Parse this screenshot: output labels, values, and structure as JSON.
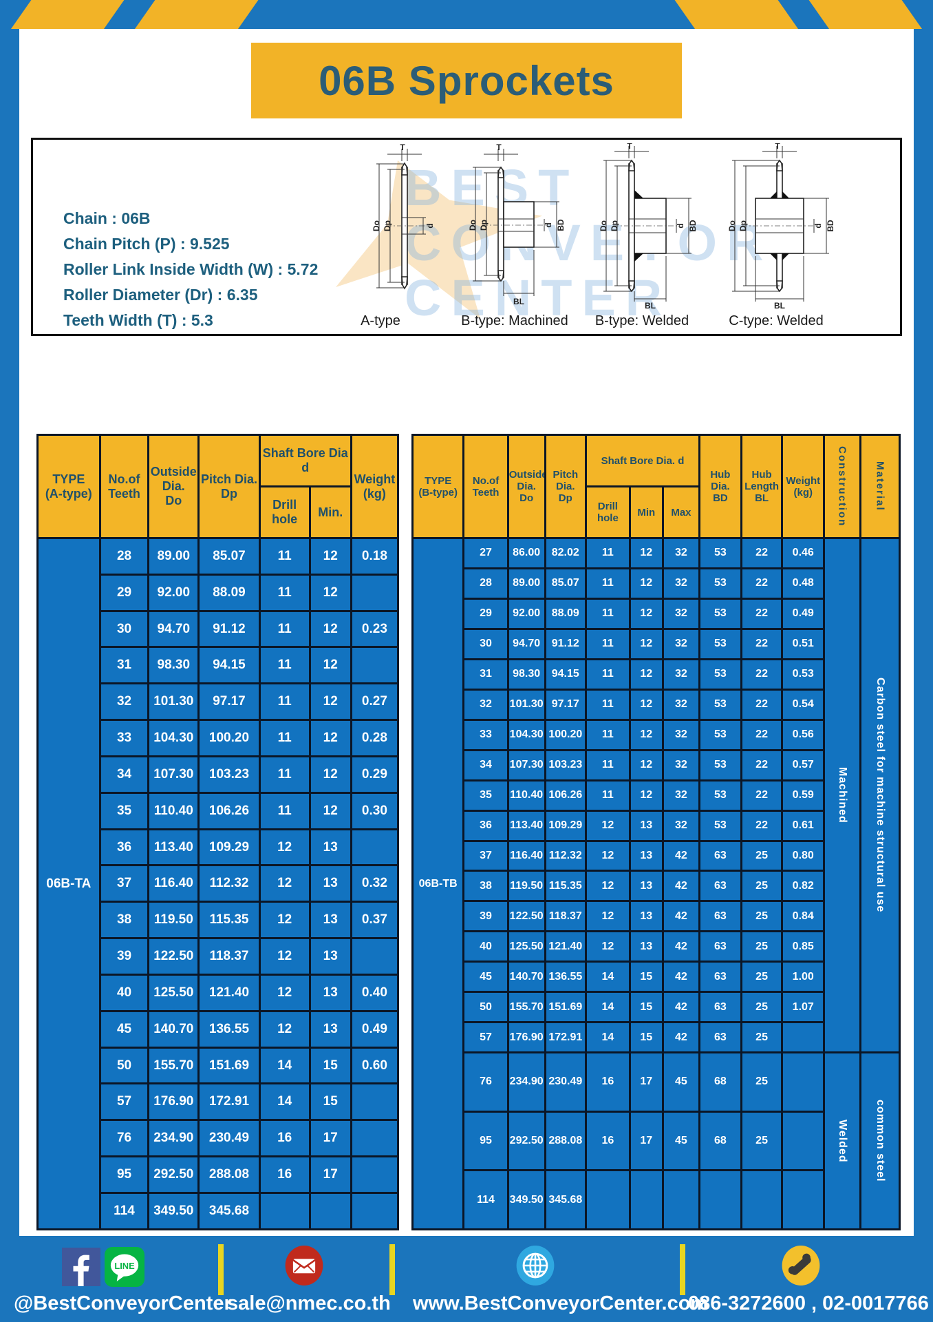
{
  "page": {
    "title": "06B Sprockets"
  },
  "colors": {
    "page_blue": "#1b75bc",
    "cell_blue": "#1273c0",
    "accent_yellow": "#f2b327",
    "title_teal": "#2b5d77",
    "grid_dark": "#0b1626"
  },
  "specs": {
    "lines": "Chain  : 06B\nChain Pitch (P)  :  9.525\nRoller Link Inside Width (W)  :  5.72\nRoller Diameter (Dr)  : 6.35\nTeeth Width (T)  :  5.3"
  },
  "diagram": {
    "captions": [
      "A-type",
      "B-type: Machined",
      "B-type: Welded",
      "C-type: Welded"
    ],
    "dims": {
      "t": "T",
      "do": "Do",
      "dp": "Dp",
      "d": "d",
      "bd": "BD",
      "bl": "BL"
    },
    "watermark": "BEST CONVEYOR CENTER"
  },
  "table_a": {
    "type_label": "06B-TA",
    "headers": {
      "type": "TYPE\n(A-type)",
      "teeth": "No.of\nTeeth",
      "outside": "Outside\nDia.\nDo",
      "pitch": "Pitch Dia.\nDp",
      "shaft": "Shaft Bore Dia d",
      "drill": "Drill hole",
      "min": "Min.",
      "weight": "Weight\n(kg)"
    },
    "rows": [
      [
        "28",
        "89.00",
        "85.07",
        "11",
        "12",
        "0.18"
      ],
      [
        "29",
        "92.00",
        "88.09",
        "11",
        "12",
        ""
      ],
      [
        "30",
        "94.70",
        "91.12",
        "11",
        "12",
        "0.23"
      ],
      [
        "31",
        "98.30",
        "94.15",
        "11",
        "12",
        ""
      ],
      [
        "32",
        "101.30",
        "97.17",
        "11",
        "12",
        "0.27"
      ],
      [
        "33",
        "104.30",
        "100.20",
        "11",
        "12",
        "0.28"
      ],
      [
        "34",
        "107.30",
        "103.23",
        "11",
        "12",
        "0.29"
      ],
      [
        "35",
        "110.40",
        "106.26",
        "11",
        "12",
        "0.30"
      ],
      [
        "36",
        "113.40",
        "109.29",
        "12",
        "13",
        ""
      ],
      [
        "37",
        "116.40",
        "112.32",
        "12",
        "13",
        "0.32"
      ],
      [
        "38",
        "119.50",
        "115.35",
        "12",
        "13",
        "0.37"
      ],
      [
        "39",
        "122.50",
        "118.37",
        "12",
        "13",
        ""
      ],
      [
        "40",
        "125.50",
        "121.40",
        "12",
        "13",
        "0.40"
      ],
      [
        "45",
        "140.70",
        "136.55",
        "12",
        "13",
        "0.49"
      ],
      [
        "50",
        "155.70",
        "151.69",
        "14",
        "15",
        "0.60"
      ],
      [
        "57",
        "176.90",
        "172.91",
        "14",
        "15",
        ""
      ],
      [
        "76",
        "234.90",
        "230.49",
        "16",
        "17",
        ""
      ],
      [
        "95",
        "292.50",
        "288.08",
        "16",
        "17",
        ""
      ],
      [
        "114",
        "349.50",
        "345.68",
        "",
        "",
        ""
      ]
    ]
  },
  "table_b": {
    "type_label": "06B-TB",
    "headers": {
      "type": "TYPE\n(B-type)",
      "teeth": "No.of\nTeeth",
      "outside": "Outside\nDia.\nDo",
      "pitch": "Pitch\nDia.\nDp",
      "shaft": "Shaft Bore Dia. d",
      "drill": "Drill hole",
      "min": "Min",
      "max": "Max",
      "hub_dia": "Hub\nDia.\nBD",
      "hub_len": "Hub\nLength\nBL",
      "weight": "Weight\n(kg)",
      "construction": "Construction",
      "material": "Material"
    },
    "rows": [
      [
        "27",
        "86.00",
        "82.02",
        "11",
        "12",
        "32",
        "53",
        "22",
        "0.46"
      ],
      [
        "28",
        "89.00",
        "85.07",
        "11",
        "12",
        "32",
        "53",
        "22",
        "0.48"
      ],
      [
        "29",
        "92.00",
        "88.09",
        "11",
        "12",
        "32",
        "53",
        "22",
        "0.49"
      ],
      [
        "30",
        "94.70",
        "91.12",
        "11",
        "12",
        "32",
        "53",
        "22",
        "0.51"
      ],
      [
        "31",
        "98.30",
        "94.15",
        "11",
        "12",
        "32",
        "53",
        "22",
        "0.53"
      ],
      [
        "32",
        "101.30",
        "97.17",
        "11",
        "12",
        "32",
        "53",
        "22",
        "0.54"
      ],
      [
        "33",
        "104.30",
        "100.20",
        "11",
        "12",
        "32",
        "53",
        "22",
        "0.56"
      ],
      [
        "34",
        "107.30",
        "103.23",
        "11",
        "12",
        "32",
        "53",
        "22",
        "0.57"
      ],
      [
        "35",
        "110.40",
        "106.26",
        "11",
        "12",
        "32",
        "53",
        "22",
        "0.59"
      ],
      [
        "36",
        "113.40",
        "109.29",
        "12",
        "13",
        "32",
        "53",
        "22",
        "0.61"
      ],
      [
        "37",
        "116.40",
        "112.32",
        "12",
        "13",
        "42",
        "63",
        "25",
        "0.80"
      ],
      [
        "38",
        "119.50",
        "115.35",
        "12",
        "13",
        "42",
        "63",
        "25",
        "0.82"
      ],
      [
        "39",
        "122.50",
        "118.37",
        "12",
        "13",
        "42",
        "63",
        "25",
        "0.84"
      ],
      [
        "40",
        "125.50",
        "121.40",
        "12",
        "13",
        "42",
        "63",
        "25",
        "0.85"
      ],
      [
        "45",
        "140.70",
        "136.55",
        "14",
        "15",
        "42",
        "63",
        "25",
        "1.00"
      ],
      [
        "50",
        "155.70",
        "151.69",
        "14",
        "15",
        "42",
        "63",
        "25",
        "1.07"
      ],
      [
        "57",
        "176.90",
        "172.91",
        "14",
        "15",
        "42",
        "63",
        "25",
        ""
      ],
      [
        "76",
        "234.90",
        "230.49",
        "16",
        "17",
        "45",
        "68",
        "25",
        ""
      ],
      [
        "95",
        "292.50",
        "288.08",
        "16",
        "17",
        "45",
        "68",
        "25",
        ""
      ],
      [
        "114",
        "349.50",
        "345.68",
        "",
        "",
        "",
        "",
        "",
        ""
      ]
    ],
    "spans": [
      {
        "name": "construction-cell",
        "groups": [
          {
            "label": "Machined",
            "rows": 17
          },
          {
            "label": "Welded",
            "rows": 3
          }
        ]
      },
      {
        "name": "material-cell",
        "groups": [
          {
            "label": "Carbon steel for machine structural use",
            "rows": 17
          },
          {
            "label": "common steel",
            "rows": 3
          }
        ]
      }
    ]
  },
  "footer": {
    "social_label": "@BestConveyorCenter",
    "line_label": "LINE",
    "email": "sale@nmec.co.th",
    "website": "www.BestConveyorCenter.com",
    "phone": "086-3272600 , 02-0017766"
  }
}
